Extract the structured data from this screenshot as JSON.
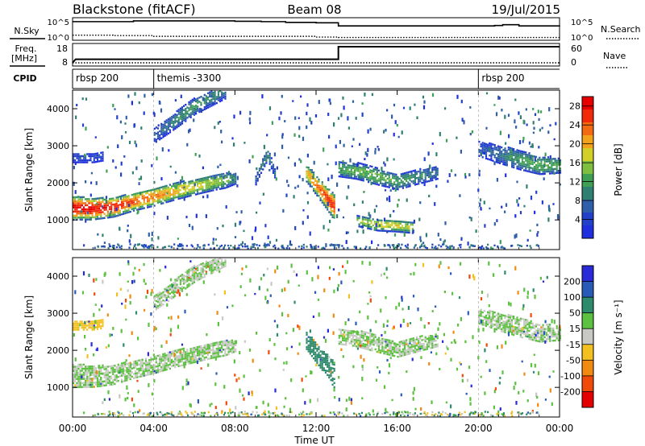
{
  "header": {
    "title": "Blackstone (fitACF)",
    "beam": "Beam 08",
    "date": "19/Jul/2015"
  },
  "chart_data": [
    {
      "type": "line",
      "panel": "noise",
      "left_label": "N.Sky",
      "right_label": "N.Search",
      "left_ticks": [
        "10^5",
        "10^0"
      ],
      "right_ticks": [
        "10^5",
        "10^0"
      ],
      "series": [
        {
          "name": "N.Sky",
          "style": "solid",
          "x": [
            0,
            3,
            5,
            8,
            9.3,
            10.5,
            12,
            13.1,
            15,
            17,
            19,
            20.8,
            21.2,
            22,
            23.5,
            24
          ],
          "y": [
            4.4,
            4.6,
            4.6,
            4.5,
            4.4,
            4.2,
            4.1,
            3.3,
            3.3,
            3.3,
            3.3,
            3.4,
            3.6,
            3.3,
            3.3,
            3.4
          ]
        },
        {
          "name": "N.Search",
          "style": "dotted",
          "x": [
            0,
            2,
            4,
            8,
            10,
            12,
            13.1,
            16,
            20,
            24
          ],
          "y": [
            0.9,
            0.8,
            0.6,
            0.6,
            0.6,
            0.4,
            0.3,
            0.3,
            0.3,
            0.3
          ]
        }
      ]
    },
    {
      "type": "line",
      "panel": "freq",
      "left_label": "Freq.",
      "left_unit": "[MHz]",
      "right_label": "Nave",
      "left_ticks": [
        "18",
        "8"
      ],
      "right_ticks": [
        "60",
        "0"
      ],
      "series": [
        {
          "name": "Freq.",
          "style": "solid",
          "x": [
            0,
            0.15,
            13.1,
            13.1,
            24
          ],
          "y": [
            8,
            10.2,
            10.2,
            18,
            18
          ]
        },
        {
          "name": "Nave",
          "style": "dotted",
          "x": [
            0,
            24
          ],
          "y": [
            3,
            3
          ]
        }
      ]
    },
    {
      "type": "table",
      "panel": "cpid",
      "label": "CPID",
      "segments": [
        {
          "start": 0,
          "label": "rbsp 200"
        },
        {
          "start": 4,
          "label": "themis -3300"
        },
        {
          "start": 20,
          "label": "rbsp 200"
        }
      ]
    },
    {
      "type": "heatmap",
      "panel": "power",
      "ylabel": "Slant Range [km]",
      "yticks": [
        1000,
        2000,
        3000,
        4000
      ],
      "ylim": [
        200,
        4500
      ],
      "colorbar": {
        "label": "Power [dB]",
        "ticks": [
          4,
          8,
          12,
          16,
          20,
          24,
          28
        ],
        "range": [
          0,
          30
        ],
        "colors": [
          "#1f2fe0",
          "#2340c8",
          "#2f5fa8",
          "#2f7f72",
          "#3f9f55",
          "#7fbf3f",
          "#d2cf29",
          "#f2a21b",
          "#f26a12",
          "#f02a0a",
          "#e80000"
        ]
      },
      "features": [
        {
          "x": [
            0,
            1,
            2,
            3,
            4,
            5,
            6,
            7,
            7.5,
            8
          ],
          "center": [
            1350,
            1330,
            1370,
            1520,
            1650,
            1800,
            1920,
            2050,
            2100,
            2150
          ],
          "width": [
            320,
            290,
            260,
            240,
            240,
            230,
            210,
            210,
            210,
            150
          ],
          "peak": [
            28,
            28,
            27,
            24,
            22,
            20,
            18,
            16,
            14,
            10
          ]
        },
        {
          "x": [
            11.5,
            12,
            12.5,
            12.9
          ],
          "center": [
            2300,
            1950,
            1620,
            1350
          ],
          "width": [
            240,
            260,
            300,
            350
          ],
          "peak": [
            20,
            22,
            26,
            26
          ]
        },
        {
          "x": [
            9,
            9.3,
            9.6,
            10
          ],
          "center": [
            2100,
            2500,
            2800,
            2200
          ],
          "width": [
            120,
            150,
            150,
            120
          ],
          "peak": [
            8,
            10,
            10,
            8
          ]
        },
        {
          "x": [
            13.1,
            14,
            15,
            16,
            17,
            18
          ],
          "center": [
            2400,
            2350,
            2200,
            2050,
            2200,
            2300
          ],
          "width": [
            200,
            220,
            220,
            200,
            200,
            160
          ],
          "peak": [
            12,
            14,
            14,
            12,
            10,
            8
          ]
        },
        {
          "x": [
            14,
            15,
            16,
            16.8
          ],
          "center": [
            1000,
            900,
            870,
            820
          ],
          "width": [
            140,
            160,
            160,
            150
          ],
          "peak": [
            16,
            18,
            18,
            16
          ]
        },
        {
          "x": [
            20,
            21,
            22,
            23,
            24
          ],
          "center": [
            2950,
            2800,
            2650,
            2500,
            2500
          ],
          "width": [
            200,
            240,
            260,
            240,
            200
          ],
          "peak": [
            6,
            8,
            12,
            14,
            12
          ]
        },
        {
          "x": [
            0,
            1,
            1.5
          ],
          "center": [
            2700,
            2700,
            2750
          ],
          "width": [
            120,
            120,
            120
          ],
          "peak": [
            5,
            5,
            5
          ]
        },
        {
          "x": [
            4,
            5,
            6,
            7.5
          ],
          "center": [
            3300,
            3700,
            4100,
            4500
          ],
          "width": [
            200,
            220,
            220,
            200
          ],
          "peak": [
            6,
            10,
            12,
            8
          ]
        }
      ]
    },
    {
      "type": "heatmap",
      "panel": "velocity",
      "ylabel": "Slant Range [km]",
      "yticks": [
        1000,
        2000,
        3000,
        4000
      ],
      "ylim": [
        200,
        4500
      ],
      "colorbar": {
        "label": "Velocity [m s⁻¹]",
        "ticks": [
          "200",
          "100",
          "50",
          "15",
          "-15",
          "-50",
          "-100",
          "-200"
        ],
        "colors": [
          "#2a2ad8",
          "#2a5ab8",
          "#2d8a6a",
          "#5cc040",
          "#c8c8c4",
          "#f2c020",
          "#f08a10",
          "#f04a0a",
          "#e40000"
        ]
      },
      "features": [
        {
          "x": [
            0,
            1,
            2,
            3,
            4,
            5,
            6,
            7,
            7.5,
            8
          ],
          "center": [
            1350,
            1330,
            1370,
            1520,
            1650,
            1800,
            1920,
            2050,
            2100,
            2150
          ],
          "width": [
            320,
            290,
            260,
            240,
            240,
            230,
            210,
            210,
            210,
            150
          ],
          "peak": [
            0,
            0,
            0,
            0,
            0,
            0,
            0,
            0,
            0,
            0
          ]
        },
        {
          "x": [
            11.5,
            12,
            12.5,
            12.9
          ],
          "center": [
            2300,
            1950,
            1620,
            1350
          ],
          "width": [
            240,
            260,
            300,
            350
          ],
          "peak": [
            60,
            60,
            60,
            60
          ]
        },
        {
          "x": [
            13.1,
            14,
            15,
            16,
            17,
            18
          ],
          "center": [
            2400,
            2350,
            2200,
            2050,
            2200,
            2300
          ],
          "width": [
            200,
            220,
            220,
            200,
            200,
            160
          ],
          "peak": [
            0,
            0,
            0,
            0,
            0,
            0
          ]
        },
        {
          "x": [
            20,
            21,
            22,
            23,
            24
          ],
          "center": [
            2950,
            2800,
            2650,
            2500,
            2500
          ],
          "width": [
            200,
            240,
            260,
            240,
            200
          ],
          "peak": [
            0,
            0,
            0,
            0,
            0
          ]
        },
        {
          "x": [
            0,
            1,
            1.5
          ],
          "center": [
            2700,
            2700,
            2750
          ],
          "width": [
            120,
            120,
            120
          ],
          "peak": [
            -60,
            -60,
            -60
          ]
        },
        {
          "x": [
            4,
            5,
            6,
            7.5
          ],
          "center": [
            3300,
            3700,
            4100,
            4500
          ],
          "width": [
            200,
            220,
            220,
            200
          ],
          "peak": [
            0,
            0,
            0,
            0
          ]
        }
      ]
    }
  ],
  "time_axis": {
    "xlabel": "Time UT",
    "ticks": [
      "00:00",
      "04:00",
      "08:00",
      "12:00",
      "16:00",
      "20:00",
      "00:00"
    ],
    "range_hours": [
      0,
      24
    ]
  }
}
